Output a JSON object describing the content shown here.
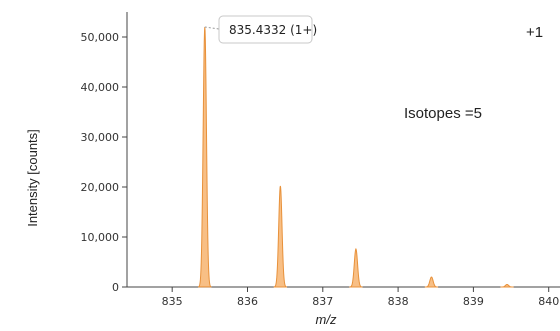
{
  "chart_data": {
    "type": "area",
    "xlabel": "m/z",
    "ylabel": "Intensity [counts]",
    "xlim": [
      834.4,
      840.15
    ],
    "ylim": [
      0,
      55000
    ],
    "x_ticks": [
      "835",
      "836",
      "837",
      "838",
      "839",
      "840"
    ],
    "y_ticks": [
      "0",
      "10,000",
      "20,000",
      "30,000",
      "40,000",
      "50,000"
    ],
    "grid": false,
    "series": [
      {
        "peaks": [
          {
            "mz": 835.4332,
            "intensity": 52000
          },
          {
            "mz": 836.4365,
            "intensity": 20200
          },
          {
            "mz": 837.4399,
            "intensity": 7600
          },
          {
            "mz": 838.4432,
            "intensity": 2000
          },
          {
            "mz": 839.4466,
            "intensity": 500
          }
        ],
        "color": "#f5a95c"
      }
    ],
    "tooltip": "835.4332 (1+)",
    "annotations": {
      "charge": "+1",
      "isotopes": "Isotopes =5"
    }
  }
}
